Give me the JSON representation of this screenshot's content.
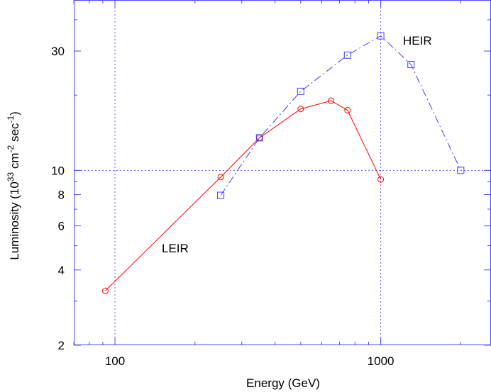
{
  "chart_data": {
    "type": "line",
    "title": "",
    "xlabel": "Energy (GeV)",
    "ylabel_main": "Luminosity (10",
    "ylabel_exp1": "33",
    "ylabel_mid": " cm",
    "ylabel_exp2": "-2",
    "ylabel_mid2": " sec",
    "ylabel_exp3": "-1",
    "ylabel_end": ")",
    "xscale": "log",
    "yscale": "log",
    "xlim": [
      70,
      2600
    ],
    "ylim": [
      2,
      48
    ],
    "x_ticks": [
      100,
      1000
    ],
    "x_tick_labels": [
      "100",
      "1000"
    ],
    "y_ticks": [
      2,
      4,
      6,
      8,
      10,
      30
    ],
    "y_tick_labels": [
      "2",
      "4",
      "6",
      "8",
      "10",
      "30"
    ],
    "grid": {
      "x": [
        100,
        1000
      ],
      "y": [
        10
      ]
    },
    "series": [
      {
        "name": "LEIR",
        "color": "#ff0000",
        "marker": "circle",
        "linestyle": "solid",
        "x": [
          92,
          250,
          350,
          500,
          650,
          750,
          1000
        ],
        "y": [
          3.3,
          9.4,
          13.5,
          17.6,
          19.0,
          17.4,
          9.2
        ]
      },
      {
        "name": "HEIR",
        "color": "#4040ff",
        "marker": "square",
        "linestyle": "dashdot",
        "x": [
          250,
          350,
          500,
          750,
          1000,
          1300,
          2000
        ],
        "y": [
          7.95,
          13.5,
          20.7,
          28.9,
          34.5,
          26.5,
          10.0
        ]
      }
    ]
  }
}
